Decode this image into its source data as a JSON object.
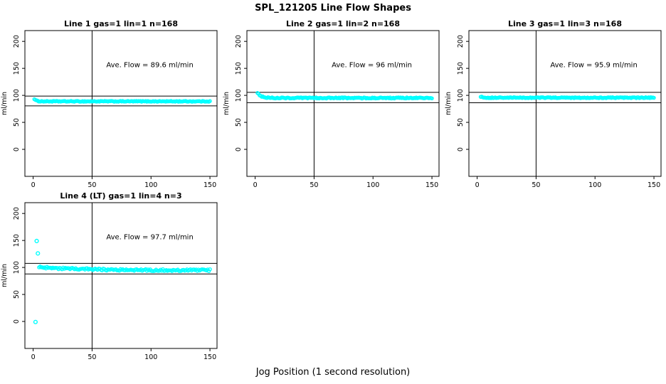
{
  "title": "SPL_121205  Line Flow Shapes",
  "xlabel": "Jog Position (1 second resolution)",
  "point_color": "#00FFFF",
  "axis_color": "#000000",
  "chart_data": [
    {
      "type": "scatter",
      "title": "Line 1 gas=1 lin=1 n=168",
      "ylabel": "ml/min",
      "annotation": "Ave. Flow =  89.6  ml/min",
      "ave_flow": 89.6,
      "x_ticks": [
        0,
        50,
        100,
        150
      ],
      "y_ticks": [
        0,
        50,
        100,
        150,
        200
      ],
      "xlim": [
        -7,
        156
      ],
      "ylim": [
        -50,
        220
      ],
      "vline_x": 50,
      "ref_lines": [
        98.6,
        80.6
      ],
      "band": {
        "x_start": 1,
        "x_end": 150,
        "n": 168,
        "y_settle": 88.9,
        "decay_amp": 4.5,
        "decay_tau": 1.5,
        "noise": 0.7
      },
      "outliers": []
    },
    {
      "type": "scatter",
      "title": "Line 2 gas=1 lin=2 n=168",
      "ylabel": "ml/min",
      "annotation": "Ave. Flow =  96  ml/min",
      "ave_flow": 96,
      "x_ticks": [
        0,
        50,
        100,
        150
      ],
      "y_ticks": [
        0,
        50,
        100,
        150,
        200
      ],
      "xlim": [
        -7,
        156
      ],
      "ylim": [
        -50,
        220
      ],
      "vline_x": 50,
      "ref_lines": [
        105.6,
        86.4
      ],
      "band": {
        "x_start": 2,
        "x_end": 150,
        "n": 168,
        "y_settle": 95.2,
        "decay_amp": 10,
        "decay_tau": 3,
        "noise": 1.0
      },
      "outliers": []
    },
    {
      "type": "scatter",
      "title": "Line 3 gas=1 lin=3 n=168",
      "ylabel": "ml/min",
      "annotation": "Ave. Flow =  95.9  ml/min",
      "ave_flow": 95.9,
      "x_ticks": [
        0,
        50,
        100,
        150
      ],
      "y_ticks": [
        0,
        50,
        100,
        150,
        200
      ],
      "xlim": [
        -7,
        156
      ],
      "ylim": [
        -50,
        220
      ],
      "vline_x": 50,
      "ref_lines": [
        105.5,
        86.3
      ],
      "band": {
        "x_start": 3,
        "x_end": 150,
        "n": 168,
        "y_settle": 95.7,
        "decay_amp": 2,
        "decay_tau": 2,
        "noise": 0.8
      },
      "outliers": []
    },
    {
      "type": "scatter",
      "title": "Line 4 (LT) gas=1 lin=4 n=3",
      "ylabel": "ml/min",
      "annotation": "Ave. Flow =  97.7  ml/min",
      "ave_flow": 97.7,
      "x_ticks": [
        0,
        50,
        100,
        150
      ],
      "y_ticks": [
        0,
        50,
        100,
        150,
        200
      ],
      "xlim": [
        -7,
        156
      ],
      "ylim": [
        -50,
        220
      ],
      "vline_x": 50,
      "ref_lines": [
        107.5,
        87.9
      ],
      "band": {
        "x_start": 5,
        "x_end": 150,
        "n": 150,
        "y_settle": 94.7,
        "decay_amp": 5.5,
        "decay_tau": 40,
        "noise": 1.8
      },
      "outliers": [
        [
          2,
          -1
        ],
        [
          3,
          149
        ],
        [
          4,
          126
        ]
      ]
    }
  ],
  "layout": {
    "rows": 2,
    "cols": 3
  }
}
